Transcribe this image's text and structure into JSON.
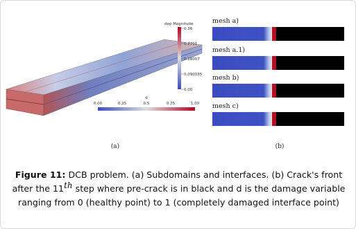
{
  "figure": {
    "panel_a": {
      "colorbar_dep": {
        "title": "dep Magnitude",
        "ticks": [
          "0.36",
          "0.2701",
          "0.18007",
          "0.090035",
          "0.00"
        ]
      },
      "colorbar_d": {
        "title": "d",
        "ticks": [
          "0.00",
          "0.25",
          "0.5",
          "0.75",
          "1.00"
        ]
      },
      "label": "(a)"
    },
    "panel_b": {
      "meshes": [
        "mesh a)",
        "mesh a.1)",
        "mesh b)",
        "mesh c)"
      ],
      "label": "(b)"
    },
    "caption": {
      "label": "Figure 11:",
      "text_before": "DCB problem. (a) Subdomains and interfaces. (b) Crack's front after the 11",
      "superscript": "th",
      "text_after": " step where pre-crack is in black and d is the damage variable ranging from 0 (healthy point) to 1 (completely damaged interface point)"
    }
  }
}
